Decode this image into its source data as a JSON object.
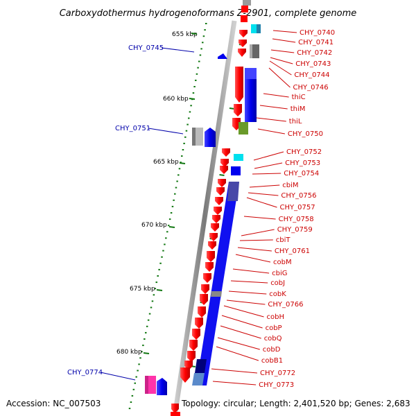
{
  "title": "Carboxydothermus hydrogenoformans Z-2901, complete genome",
  "footer": {
    "accession": "Accession: NC_007503",
    "summary": "Topology: circular; Length: 2,401,520 bp; Genes: 2,683"
  },
  "scale_labels": [
    "655 kbp",
    "660 kbp",
    "665 kbp",
    "670 kbp",
    "675 kbp",
    "680 kbp"
  ],
  "right_genes": [
    "CHY_0740",
    "CHY_0741",
    "CHY_0742",
    "CHY_0743",
    "CHY_0744",
    "CHY_0746",
    "thiC",
    "thiM",
    "thiL",
    "CHY_0750",
    "CHY_0752",
    "CHY_0753",
    "CHY_0754",
    "cbiM",
    "CHY_0756",
    "CHY_0757",
    "CHY_0758",
    "CHY_0759",
    "cbiT",
    "CHY_0761",
    "cobM",
    "cbiG",
    "cobJ",
    "cobK",
    "CHY_0766",
    "cobH",
    "cobP",
    "cobQ",
    "cobD",
    "cobB1",
    "CHY_0772",
    "CHY_0773"
  ],
  "left_genes": [
    "CHY_0745",
    "CHY_0751",
    "CHY_0774"
  ],
  "colors": {
    "gene_red": "#ff0000",
    "gene_blue": "#0000ee",
    "scale_green": "#117711",
    "label_red": "#cc0000",
    "label_blue": "#0000aa"
  }
}
